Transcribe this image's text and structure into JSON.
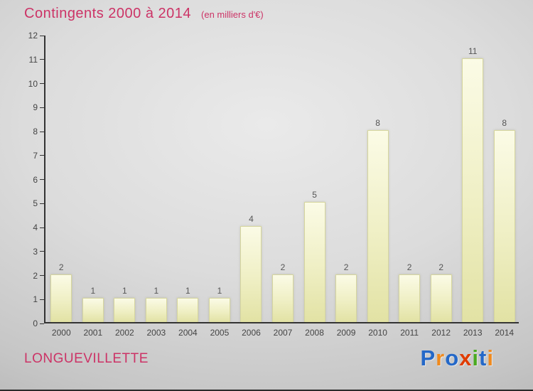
{
  "header": {
    "title": "Contingents 2000 à 2014",
    "subtitle": "(en milliers d'€)"
  },
  "footer": {
    "location": "LONGUEVILLETTE",
    "logo": {
      "text": "Proxiti",
      "letters": [
        {
          "ch": "P",
          "color": "#2468c8"
        },
        {
          "ch": "r",
          "color": "#f08a1e"
        },
        {
          "ch": "o",
          "color": "#2468c8"
        },
        {
          "ch": "x",
          "color": "#e03c00"
        },
        {
          "ch": "i",
          "color": "#4aaa20"
        },
        {
          "ch": "t",
          "color": "#2468c8"
        },
        {
          "ch": "i",
          "color": "#f08a1e"
        }
      ]
    }
  },
  "colors": {
    "title_pink": "#cc3366",
    "bar_fill_top": "#fbfbe6",
    "bar_fill_bottom": "#e2e2a4",
    "axis": "#333333",
    "value_label": "#555555"
  },
  "chart_data": {
    "type": "bar",
    "title": "Contingents 2000 à 2014",
    "subtitle": "(en milliers d'€)",
    "categories": [
      "2000",
      "2001",
      "2002",
      "2003",
      "2004",
      "2005",
      "2006",
      "2007",
      "2008",
      "2009",
      "2010",
      "2011",
      "2012",
      "2013",
      "2014"
    ],
    "values": [
      2,
      1,
      1,
      1,
      1,
      1,
      4,
      2,
      5,
      2,
      8,
      2,
      2,
      11,
      8
    ],
    "xlabel": "",
    "ylabel": "",
    "ylim": [
      0,
      12
    ],
    "yticks": [
      0,
      1,
      2,
      3,
      4,
      5,
      6,
      7,
      8,
      9,
      10,
      11,
      12
    ],
    "grid": false,
    "legend": false,
    "value_labels_shown": true
  }
}
